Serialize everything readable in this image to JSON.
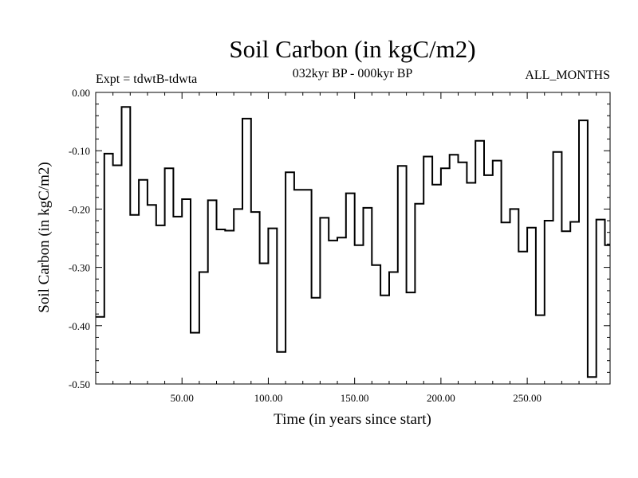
{
  "chart_data": {
    "type": "line",
    "style": "step",
    "title": "Soil Carbon (in kgC/m2)",
    "subtitle_left": "Expt = tdwtB-tdwta",
    "subtitle_center": "032kyr BP - 000kyr BP",
    "subtitle_right": "ALL_MONTHS",
    "xlabel": "Time (in years since start)",
    "ylabel": "Soil Carbon (in kgC/m2)",
    "xlim": [
      0,
      298
    ],
    "ylim": [
      -0.5,
      0.0
    ],
    "xticks": [
      50,
      100,
      150,
      200,
      250
    ],
    "xtick_labels": [
      "50.00",
      "100.00",
      "150.00",
      "200.00",
      "250.00"
    ],
    "yticks": [
      0.0,
      -0.1,
      -0.2,
      -0.3,
      -0.4,
      -0.5
    ],
    "ytick_labels": [
      "0.00",
      "-0.10",
      "-0.20",
      "-0.30",
      "-0.40",
      "-0.50"
    ],
    "series": [
      {
        "name": "Soil Carbon",
        "x": [
          0,
          5,
          10,
          15,
          20,
          25,
          30,
          35,
          40,
          45,
          50,
          55,
          60,
          65,
          70,
          75,
          80,
          85,
          90,
          95,
          100,
          105,
          110,
          115,
          120,
          125,
          130,
          135,
          140,
          145,
          150,
          155,
          160,
          165,
          170,
          175,
          180,
          185,
          190,
          195,
          200,
          205,
          210,
          215,
          220,
          225,
          230,
          235,
          240,
          245,
          250,
          255,
          260,
          265,
          270,
          275,
          280,
          285,
          290,
          295
        ],
        "values": [
          -0.385,
          -0.105,
          -0.125,
          -0.025,
          -0.21,
          -0.15,
          -0.193,
          -0.228,
          -0.13,
          -0.213,
          -0.183,
          -0.412,
          -0.308,
          -0.185,
          -0.235,
          -0.237,
          -0.2,
          -0.045,
          -0.205,
          -0.293,
          -0.233,
          -0.445,
          -0.137,
          -0.167,
          -0.167,
          -0.352,
          -0.215,
          -0.254,
          -0.249,
          -0.173,
          -0.262,
          -0.198,
          -0.296,
          -0.348,
          -0.308,
          -0.126,
          -0.343,
          -0.191,
          -0.11,
          -0.158,
          -0.13,
          -0.107,
          -0.12,
          -0.155,
          -0.083,
          -0.142,
          -0.117,
          -0.223,
          -0.2,
          -0.273,
          -0.232,
          -0.382,
          -0.22,
          -0.102,
          -0.238,
          -0.222,
          -0.048,
          -0.488,
          -0.218,
          -0.262
        ]
      }
    ]
  }
}
